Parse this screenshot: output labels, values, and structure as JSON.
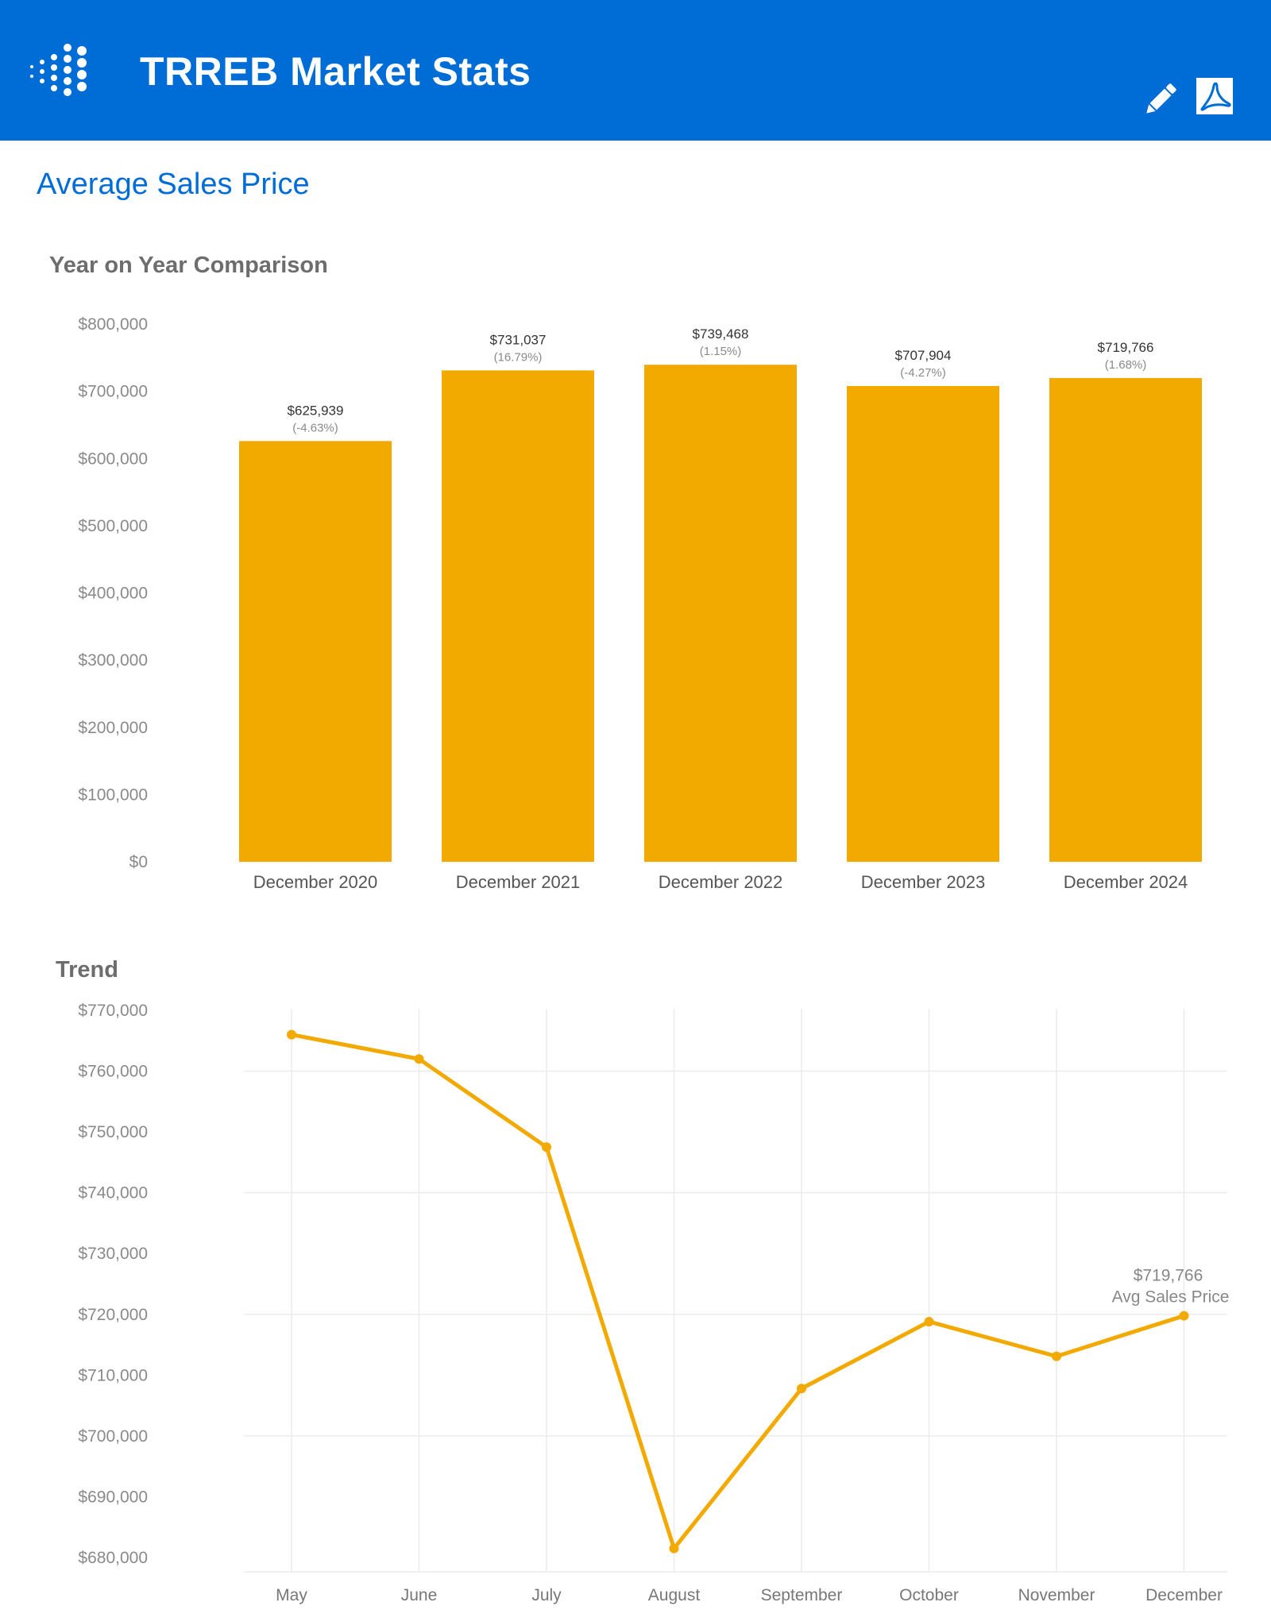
{
  "header": {
    "title": "TRREB Market Stats",
    "logo_icon": "dots-logo-icon",
    "edit_icon": "pencil-icon",
    "pdf_icon": "pdf-icon",
    "background": "#006dd6"
  },
  "section": {
    "title": "Average Sales Price"
  },
  "colors": {
    "accent": "#f2a900",
    "grid": "#ececec"
  },
  "yoy": {
    "title": "Year on Year Comparison"
  },
  "trend": {
    "title": "Trend"
  },
  "chart_data": [
    {
      "type": "bar",
      "title": "Year on Year Comparison",
      "categories": [
        "December 2020",
        "December 2021",
        "December 2022",
        "December 2023",
        "December 2024"
      ],
      "values": [
        625939,
        731037,
        739468,
        707904,
        719766
      ],
      "value_labels": [
        "$625,939",
        "$731,037",
        "$739,468",
        "$707,904",
        "$719,766"
      ],
      "change_labels": [
        "(-4.63%)",
        "(16.79%)",
        "(1.15%)",
        "(-4.27%)",
        "(1.68%)"
      ],
      "ylim": [
        0,
        800000
      ],
      "y_ticks": [
        0,
        100000,
        200000,
        300000,
        400000,
        500000,
        600000,
        700000,
        800000
      ],
      "y_tick_labels": [
        "$0",
        "$100,000",
        "$200,000",
        "$300,000",
        "$400,000",
        "$500,000",
        "$600,000",
        "$700,000",
        "$800,000"
      ],
      "grid": false,
      "color": "#f2a900"
    },
    {
      "type": "line",
      "title": "Trend",
      "categories": [
        "May",
        "June",
        "July",
        "August",
        "September",
        "October",
        "November",
        "December"
      ],
      "values": [
        766000,
        762000,
        747500,
        681500,
        707800,
        718800,
        713100,
        719766
      ],
      "ylim": [
        680000,
        770000
      ],
      "y_ticks": [
        680000,
        690000,
        700000,
        710000,
        720000,
        730000,
        740000,
        750000,
        760000,
        770000
      ],
      "y_tick_labels": [
        "$680,000",
        "$690,000",
        "$700,000",
        "$710,000",
        "$720,000",
        "$730,000",
        "$740,000",
        "$750,000",
        "$760,000",
        "$770,000"
      ],
      "grid": true,
      "color": "#f2a900",
      "annotation": {
        "value_label": "$719,766",
        "label": "Avg Sales Price",
        "index": 7
      }
    }
  ]
}
